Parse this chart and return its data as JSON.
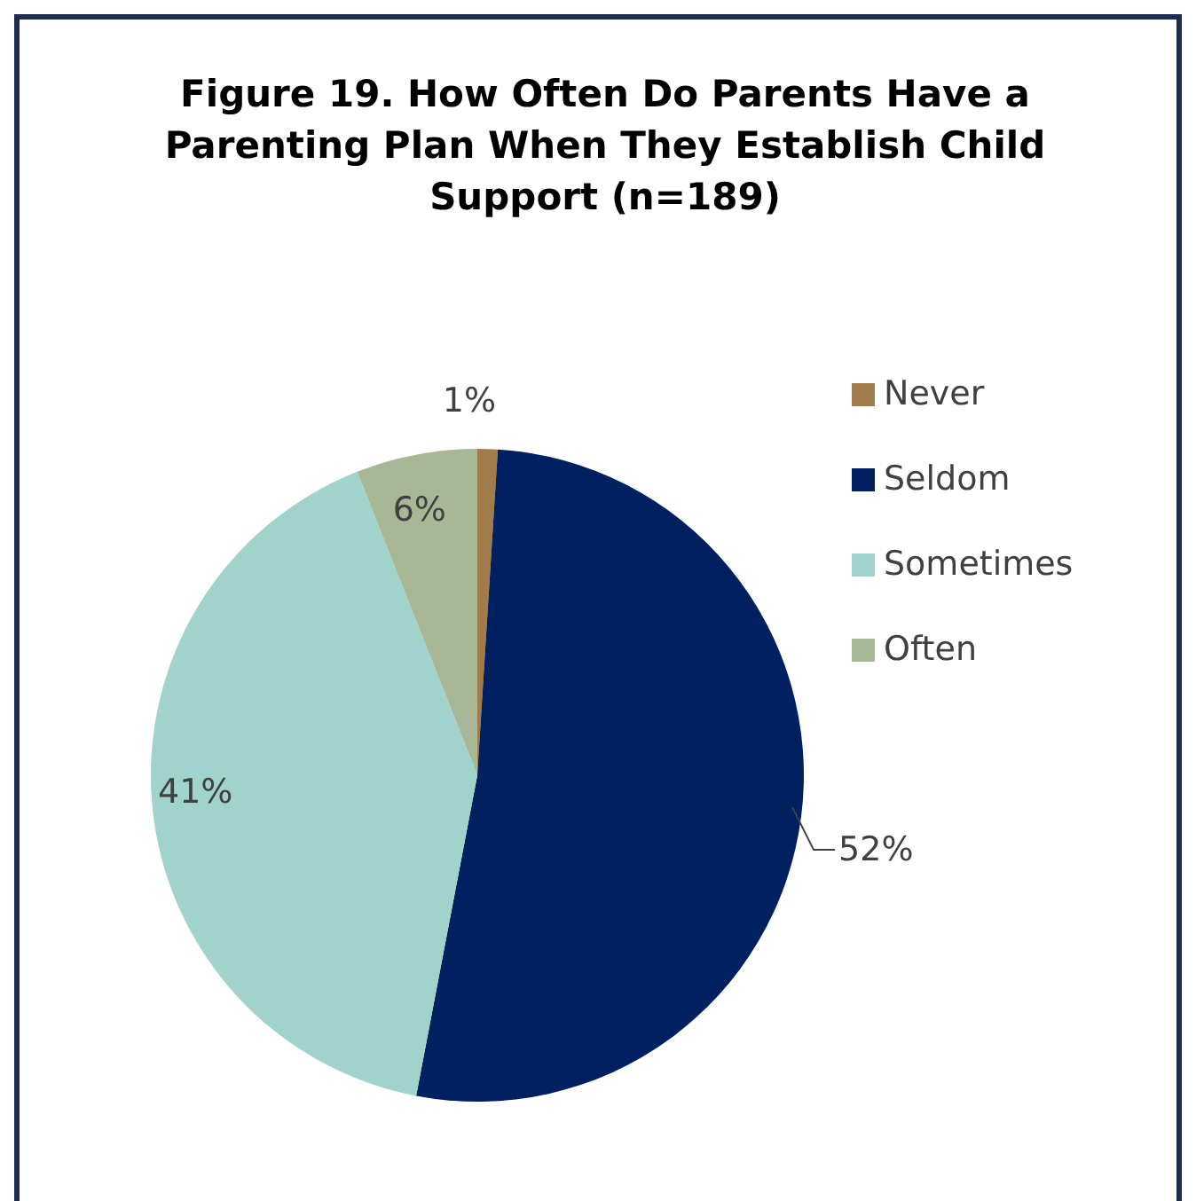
{
  "chart_data": {
    "type": "pie",
    "title": "Figure 19. How Often Do Parents Have a Parenting Plan When They Establish Child Support (n=189)",
    "categories": [
      "Never",
      "Seldom",
      "Sometimes",
      "Often"
    ],
    "values": [
      1,
      52,
      41,
      6
    ],
    "value_labels": [
      "1%",
      "52%",
      "41%",
      "6%"
    ],
    "colors": [
      "#a07c4c",
      "#002060",
      "#9fd3cc",
      "#a8b896"
    ],
    "legend": "top right"
  }
}
